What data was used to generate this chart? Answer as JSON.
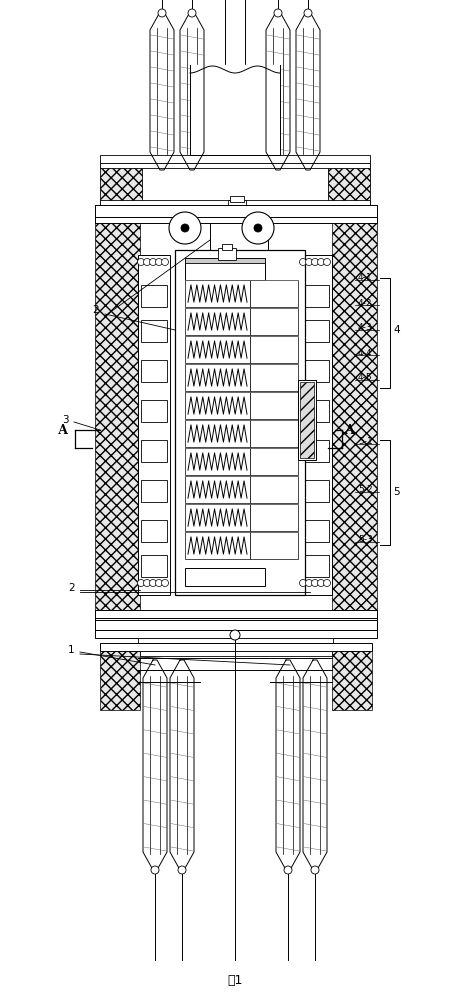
{
  "bg_color": "#ffffff",
  "line_color": "#000000",
  "figsize": [
    4.7,
    10.0
  ],
  "dpi": 100,
  "title": "图1"
}
